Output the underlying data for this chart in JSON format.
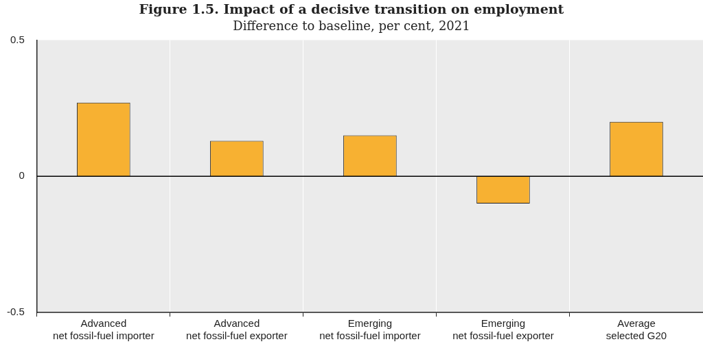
{
  "chart_data": {
    "type": "bar",
    "title": "Figure 1.5. Impact of a decisive transition on employment",
    "subtitle": "Difference to baseline, per cent, 2021",
    "categories": [
      "Advanced\nnet fossil-fuel importer",
      "Advanced\nnet fossil-fuel exporter",
      "Emerging\nnet fossil-fuel importer",
      "Emerging\nnet fossil-fuel exporter",
      "Average\nselected G20"
    ],
    "values": [
      0.27,
      0.13,
      0.15,
      -0.1,
      0.2
    ],
    "color": "#f7b132",
    "ylim": [
      -0.5,
      0.5
    ],
    "yticks": [
      -0.5,
      0,
      0.5
    ],
    "grid": "x",
    "legend": false
  }
}
